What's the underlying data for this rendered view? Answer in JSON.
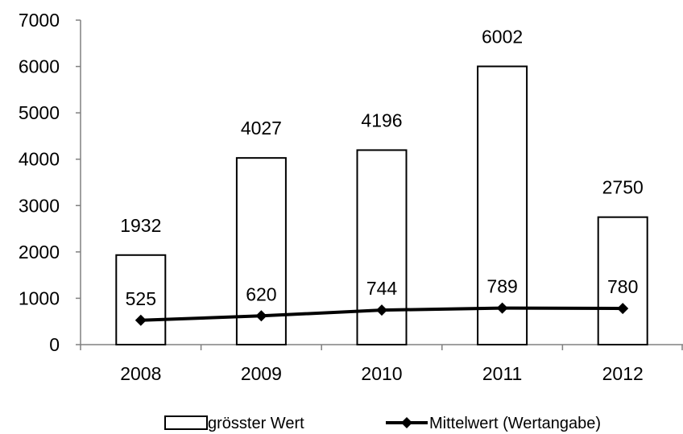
{
  "chart_data": {
    "type": "bar",
    "title": "",
    "xlabel": "",
    "ylabel": "",
    "categories": [
      "2008",
      "2009",
      "2010",
      "2011",
      "2012"
    ],
    "ylim": [
      0,
      7000
    ],
    "yticks": [
      "0",
      "1000",
      "2000",
      "3000",
      "4000",
      "5000",
      "6000",
      "7000"
    ],
    "grid": false,
    "legend_position": "bottom",
    "series": [
      {
        "name": "grösster Wert",
        "type": "bar",
        "values": [
          1932,
          4027,
          4196,
          6002,
          2750
        ],
        "labels": [
          "1932",
          "4027",
          "4196",
          "6002",
          "2750"
        ],
        "fill": "#ffffff",
        "stroke": "#000000"
      },
      {
        "name": "Mittelwert (Wertangabe)",
        "type": "line",
        "values": [
          525,
          620,
          744,
          789,
          780
        ],
        "labels": [
          "525",
          "620",
          "744",
          "789",
          "780"
        ],
        "color": "#000000",
        "marker": "diamond"
      }
    ]
  }
}
